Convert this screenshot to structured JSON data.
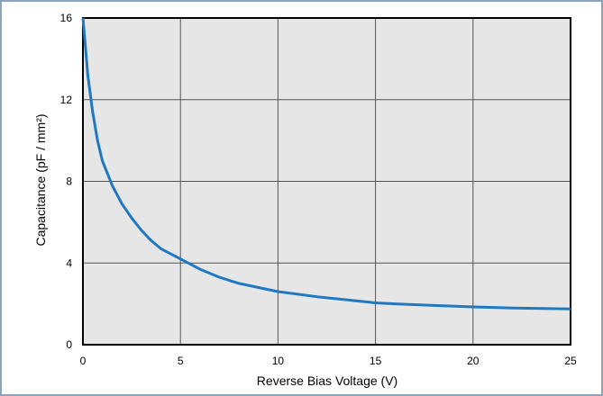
{
  "chart_data": {
    "type": "line",
    "title": "",
    "xlabel": "Reverse Bias Voltage (V)",
    "ylabel": "Capacitance (pF / mm²)",
    "xlim": [
      0,
      25
    ],
    "ylim": [
      0,
      16
    ],
    "x_ticks": [
      "0",
      "5",
      "10",
      "15",
      "20",
      "25"
    ],
    "y_ticks": [
      "0",
      "4",
      "8",
      "12",
      "16"
    ],
    "grid": true,
    "legend": "none",
    "colors": {
      "line": "#1f78c1",
      "plot_bg": "#e6e6e6",
      "grid": "#555555",
      "frame": "#8ba4bc"
    },
    "series": [
      {
        "x": [
          0,
          0.1,
          0.25,
          0.5,
          0.75,
          1,
          1.5,
          2,
          2.5,
          3,
          3.5,
          4,
          5,
          6,
          7,
          8,
          9,
          10,
          12,
          14,
          15,
          16,
          18,
          20,
          22,
          25
        ],
        "values": [
          16,
          14.9,
          13.2,
          11.4,
          10.0,
          9.0,
          7.8,
          6.9,
          6.2,
          5.6,
          5.1,
          4.7,
          4.2,
          3.7,
          3.3,
          3.0,
          2.8,
          2.6,
          2.35,
          2.15,
          2.05,
          2.0,
          1.92,
          1.85,
          1.8,
          1.75
        ]
      }
    ]
  }
}
